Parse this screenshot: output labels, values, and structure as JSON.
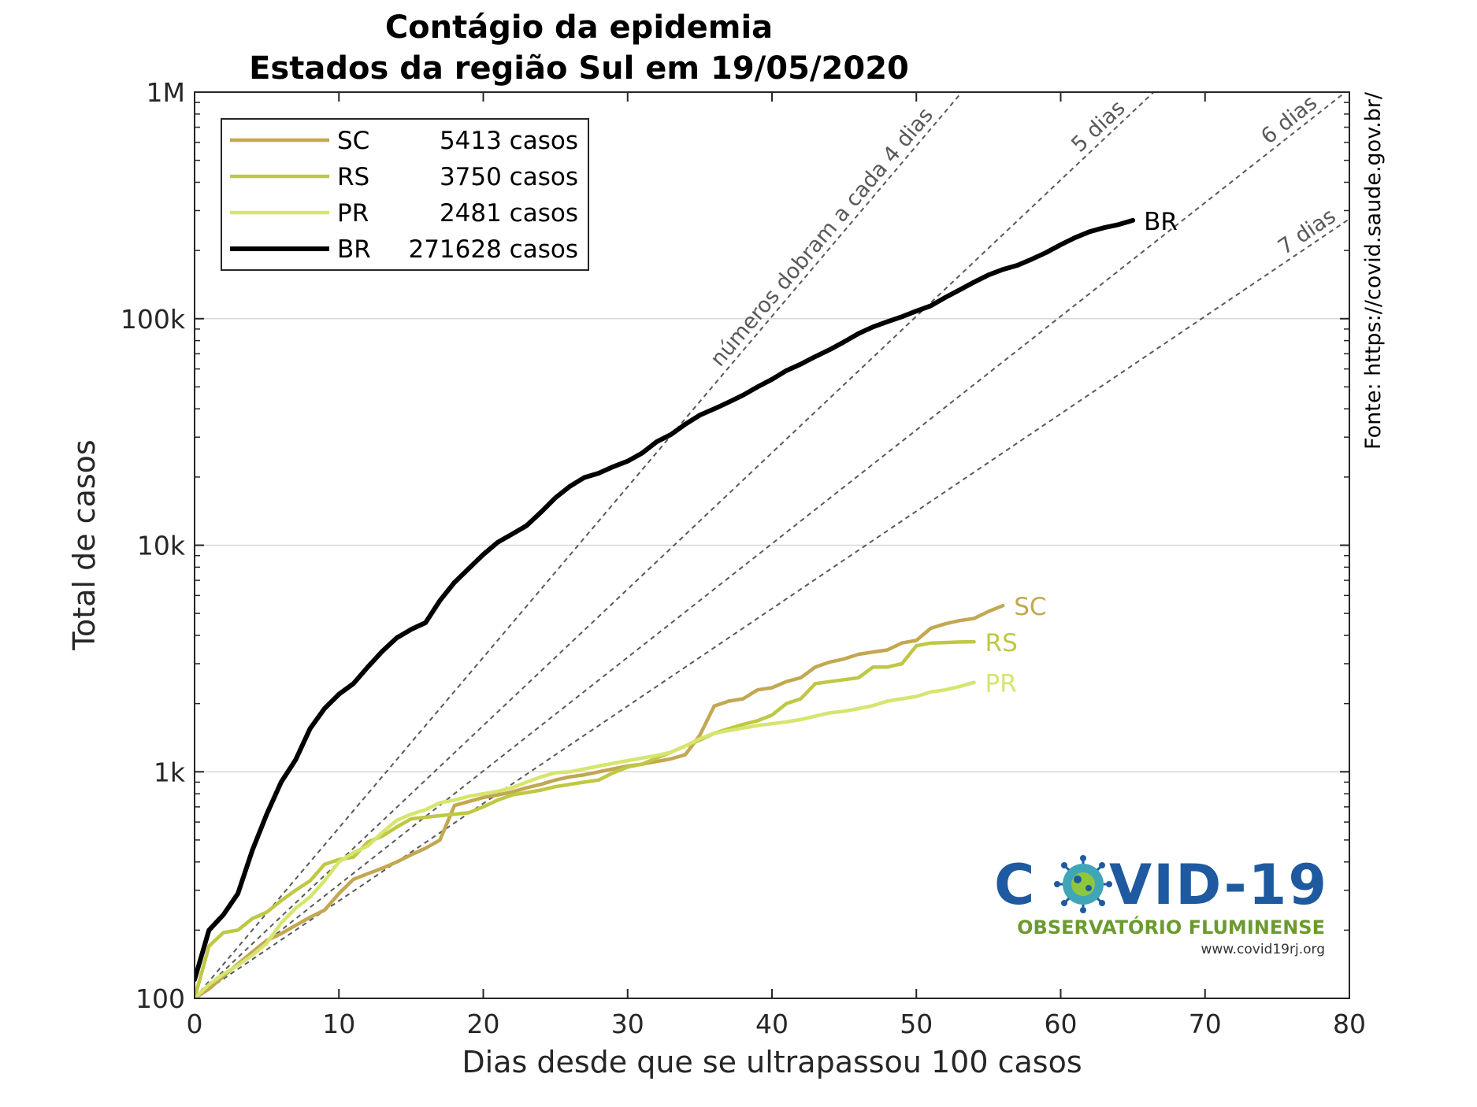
{
  "chart_data": {
    "type": "line",
    "title": "Contágio da epidemia",
    "subtitle": "Estados da região Sul em 19/05/2020",
    "xlabel": "Dias desde que se ultrapassou 100 casos",
    "ylabel": "Total de casos",
    "xlim": [
      0,
      80
    ],
    "ylim": [
      100,
      1000000
    ],
    "yscale": "log",
    "xticks": [
      0,
      10,
      20,
      30,
      40,
      50,
      60,
      70,
      80
    ],
    "yticks": [
      {
        "value": 100,
        "label": "100"
      },
      {
        "value": 1000,
        "label": "1k"
      },
      {
        "value": 10000,
        "label": "10k"
      },
      {
        "value": 100000,
        "label": "100k"
      },
      {
        "value": 1000000,
        "label": "1M"
      }
    ],
    "grid": "y-major",
    "legend_position": "top-left",
    "source_note": "Fonte: https://covid.saude.gov.br/",
    "doubling_guides": [
      {
        "days": 4,
        "label": "números dobram a cada 4 dias"
      },
      {
        "days": 5,
        "label": "5 dias"
      },
      {
        "days": 6,
        "label": "6 dias"
      },
      {
        "days": 7,
        "label": "7 dias"
      }
    ],
    "series": [
      {
        "name": "SC",
        "legend_count": "5413 casos",
        "color": "#c2a852",
        "width": 4.5,
        "y": [
          100,
          110,
          125,
          142,
          160,
          180,
          193,
          210,
          228,
          245,
          290,
          335,
          355,
          375,
          400,
          430,
          460,
          500,
          710,
          740,
          770,
          790,
          815,
          850,
          880,
          920,
          950,
          970,
          1000,
          1030,
          1060,
          1080,
          1110,
          1140,
          1190,
          1450,
          1950,
          2050,
          2100,
          2300,
          2350,
          2500,
          2600,
          2900,
          3050,
          3150,
          3300,
          3380,
          3450,
          3700,
          3800,
          4300,
          4500,
          4650,
          4750,
          5100,
          5413
        ]
      },
      {
        "name": "RS",
        "legend_count": "3750 casos",
        "color": "#bfc844",
        "width": 4.5,
        "y": [
          100,
          170,
          195,
          200,
          225,
          240,
          270,
          300,
          330,
          390,
          410,
          420,
          490,
          520,
          570,
          620,
          630,
          640,
          650,
          660,
          700,
          750,
          790,
          810,
          830,
          860,
          880,
          900,
          920,
          990,
          1050,
          1080,
          1150,
          1220,
          1300,
          1380,
          1480,
          1550,
          1620,
          1680,
          1780,
          2000,
          2100,
          2450,
          2500,
          2550,
          2600,
          2900,
          2900,
          3000,
          3600,
          3700,
          3720,
          3740,
          3750
        ]
      },
      {
        "name": "PR",
        "legend_count": "2481 casos",
        "color": "#d6e56e",
        "width": 4.5,
        "y": [
          100,
          115,
          128,
          140,
          155,
          175,
          215,
          250,
          280,
          330,
          400,
          440,
          470,
          540,
          610,
          650,
          680,
          730,
          750,
          780,
          800,
          820,
          850,
          900,
          950,
          990,
          1000,
          1030,
          1060,
          1090,
          1120,
          1150,
          1180,
          1220,
          1300,
          1400,
          1480,
          1520,
          1560,
          1600,
          1630,
          1660,
          1700,
          1760,
          1820,
          1850,
          1900,
          1960,
          2050,
          2100,
          2150,
          2250,
          2300,
          2380,
          2481
        ]
      },
      {
        "name": "BR",
        "legend_count": "271628 casos",
        "color": "#000000",
        "width": 6,
        "y": [
          121,
          200,
          234,
          290,
          450,
          650,
          900,
          1130,
          1550,
          1900,
          2200,
          2450,
          2900,
          3400,
          3900,
          4250,
          4550,
          5700,
          6850,
          7900,
          9100,
          10300,
          11200,
          12200,
          14000,
          16200,
          18200,
          19900,
          20800,
          22200,
          23500,
          25500,
          28600,
          30800,
          34200,
          37500,
          40000,
          42800,
          46000,
          50000,
          54000,
          59000,
          63000,
          68000,
          73000,
          79000,
          86000,
          92000,
          97000,
          102000,
          108000,
          114000,
          124000,
          134000,
          145000,
          156000,
          165000,
          172000,
          183000,
          196000,
          212000,
          228000,
          242000,
          252000,
          260000,
          271628
        ]
      }
    ]
  },
  "logo": {
    "line1_left": "C",
    "line1_right": "VID-19",
    "line2": "OBSERVATÓRIO FLUMINENSE",
    "line3": "www.covid19rj.org"
  }
}
